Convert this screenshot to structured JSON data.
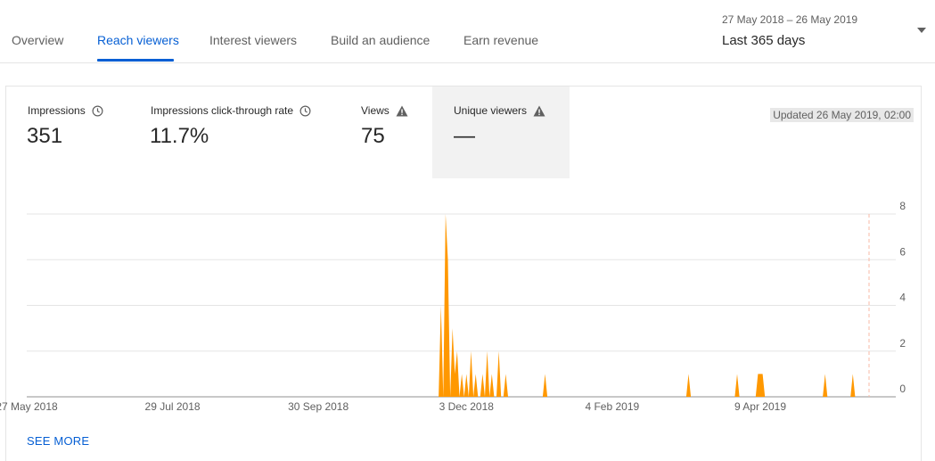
{
  "tabs": [
    {
      "label": "Overview",
      "active": false
    },
    {
      "label": "Reach viewers",
      "active": true
    },
    {
      "label": "Interest viewers",
      "active": false
    },
    {
      "label": "Build an audience",
      "active": false
    },
    {
      "label": "Earn revenue",
      "active": false
    }
  ],
  "date_selector": {
    "range": "27 May 2018 – 26 May 2019",
    "period": "Last 365 days"
  },
  "metrics": [
    {
      "label": "Impressions",
      "value": "351",
      "icon": "clock-icon"
    },
    {
      "label": "Impressions click-through rate",
      "value": "11.7%",
      "icon": "clock-icon"
    },
    {
      "label": "Views",
      "value": "75",
      "icon": "warning-icon"
    },
    {
      "label": "Unique viewers",
      "value": "—",
      "icon": "warning-icon",
      "selected": true
    }
  ],
  "updated": "Updated 26 May 2019, 02:00",
  "see_more": "SEE MORE",
  "colors": {
    "accent": "#065fd4",
    "series": "#ff9800",
    "marker": "#f9b8a4"
  },
  "chart_data": {
    "type": "area",
    "start_date": "2018-05-27",
    "end_date": "2019-05-26",
    "ylim": [
      0,
      8
    ],
    "y_ticks": [
      "8",
      "6",
      "4",
      "2",
      "0"
    ],
    "x_ticks": [
      "27 May 2018",
      "29 Jul 2018",
      "30 Sep 2018",
      "3 Dec 2018",
      "4 Feb 2019",
      "9 Apr 2019"
    ],
    "x_tick_dates": [
      "2018-05-27",
      "2018-07-29",
      "2018-09-30",
      "2018-12-03",
      "2019-02-04",
      "2019-04-09"
    ],
    "marker_date": "2019-05-26",
    "series": [
      {
        "points": [
          [
            "2018-11-21",
            0
          ],
          [
            "2018-11-22",
            4
          ],
          [
            "2018-11-23",
            0
          ],
          [
            "2018-11-23",
            0
          ],
          [
            "2018-11-24",
            8
          ],
          [
            "2018-11-25",
            6
          ],
          [
            "2018-11-26",
            0
          ],
          [
            "2018-11-27",
            3
          ],
          [
            "2018-11-28",
            1
          ],
          [
            "2018-11-29",
            2
          ],
          [
            "2018-11-30",
            0
          ],
          [
            "2018-12-01",
            1
          ],
          [
            "2018-12-02",
            0
          ],
          [
            "2018-12-03",
            1
          ],
          [
            "2018-12-04",
            0
          ],
          [
            "2018-12-05",
            2
          ],
          [
            "2018-12-06",
            0
          ],
          [
            "2018-12-07",
            1
          ],
          [
            "2018-12-08",
            0
          ],
          [
            "2018-12-09",
            0
          ],
          [
            "2018-12-10",
            1
          ],
          [
            "2018-12-11",
            0
          ],
          [
            "2018-12-12",
            2
          ],
          [
            "2018-12-13",
            0
          ],
          [
            "2018-12-14",
            1
          ],
          [
            "2018-12-15",
            0
          ],
          [
            "2018-12-16",
            0
          ],
          [
            "2018-12-17",
            2
          ],
          [
            "2018-12-18",
            0
          ],
          [
            "2018-12-19",
            0
          ],
          [
            "2018-12-20",
            1
          ],
          [
            "2018-12-21",
            0
          ],
          [
            "2019-01-05",
            0
          ],
          [
            "2019-01-06",
            1
          ],
          [
            "2019-01-07",
            0
          ],
          [
            "2019-03-08",
            0
          ],
          [
            "2019-03-09",
            1
          ],
          [
            "2019-03-10",
            0
          ],
          [
            "2019-03-29",
            0
          ],
          [
            "2019-03-30",
            1
          ],
          [
            "2019-03-31",
            0
          ],
          [
            "2019-04-07",
            0
          ],
          [
            "2019-04-08",
            1
          ],
          [
            "2019-04-09",
            1
          ],
          [
            "2019-04-10",
            1
          ],
          [
            "2019-04-11",
            0
          ],
          [
            "2019-05-06",
            0
          ],
          [
            "2019-05-07",
            1
          ],
          [
            "2019-05-08",
            0
          ],
          [
            "2019-05-18",
            0
          ],
          [
            "2019-05-19",
            1
          ],
          [
            "2019-05-20",
            0
          ]
        ]
      }
    ]
  }
}
